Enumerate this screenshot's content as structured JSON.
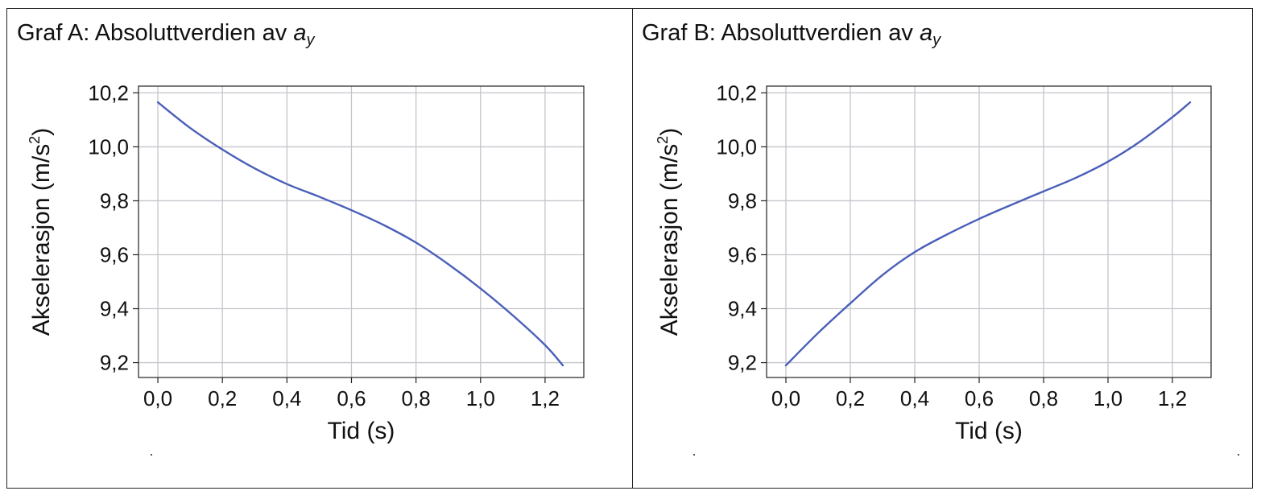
{
  "charts": [
    {
      "title_prefix": "Graf A: Absoluttverdien av ",
      "title_var": "a",
      "title_sub": "y"
    },
    {
      "title_prefix": "Graf B: Absoluttverdien av ",
      "title_var": "a",
      "title_sub": "y"
    }
  ],
  "chart_data": [
    {
      "type": "line",
      "title": "Graf A: Absoluttverdien av a_y",
      "xlabel": "Tid (s)",
      "ylabel": "Akselerasjon (m/s²)",
      "ylabel_main": "Akselerasjon (m/s",
      "ylabel_sup": "2",
      "ylabel_end": ")",
      "xlim": [
        -0.06,
        1.32
      ],
      "ylim": [
        9.145,
        10.225
      ],
      "xticks": [
        0.0,
        0.2,
        0.4,
        0.6,
        0.8,
        1.0,
        1.2
      ],
      "xticklabels": [
        "0,0",
        "0,2",
        "0,4",
        "0,6",
        "0,8",
        "1,0",
        "1,2"
      ],
      "yticks": [
        9.2,
        9.4,
        9.6,
        9.8,
        10.0,
        10.2
      ],
      "yticklabels": [
        "9,2",
        "9,4",
        "9,6",
        "9,8",
        "10,0",
        "10,2"
      ],
      "grid": true,
      "line_color": "#4a5fb8",
      "series": [
        {
          "x": [
            0.0,
            0.1,
            0.2,
            0.3,
            0.4,
            0.5,
            0.6,
            0.7,
            0.8,
            0.9,
            1.0,
            1.1,
            1.2,
            1.255
          ],
          "y": [
            10.165,
            10.07,
            9.99,
            9.92,
            9.862,
            9.815,
            9.765,
            9.71,
            9.645,
            9.565,
            9.475,
            9.375,
            9.265,
            9.19
          ]
        }
      ]
    },
    {
      "type": "line",
      "title": "Graf B: Absoluttverdien av a_y",
      "xlabel": "Tid (s)",
      "ylabel": "Akselerasjon (m/s²)",
      "ylabel_main": "Akselerasjon (m/s",
      "ylabel_sup": "2",
      "ylabel_end": ")",
      "xlim": [
        -0.06,
        1.32
      ],
      "ylim": [
        9.145,
        10.225
      ],
      "xticks": [
        0.0,
        0.2,
        0.4,
        0.6,
        0.8,
        1.0,
        1.2
      ],
      "xticklabels": [
        "0,0",
        "0,2",
        "0,4",
        "0,6",
        "0,8",
        "1,0",
        "1,2"
      ],
      "yticks": [
        9.2,
        9.4,
        9.6,
        9.8,
        10.0,
        10.2
      ],
      "yticklabels": [
        "9,2",
        "9,4",
        "9,6",
        "9,8",
        "10,0",
        "10,2"
      ],
      "grid": true,
      "line_color": "#4a5fb8",
      "series": [
        {
          "x": [
            0.0,
            0.1,
            0.2,
            0.3,
            0.4,
            0.5,
            0.6,
            0.7,
            0.8,
            0.9,
            1.0,
            1.1,
            1.2,
            1.255
          ],
          "y": [
            9.19,
            9.31,
            9.42,
            9.525,
            9.61,
            9.675,
            9.733,
            9.785,
            9.835,
            9.885,
            9.945,
            10.02,
            10.11,
            10.165
          ]
        }
      ]
    }
  ]
}
